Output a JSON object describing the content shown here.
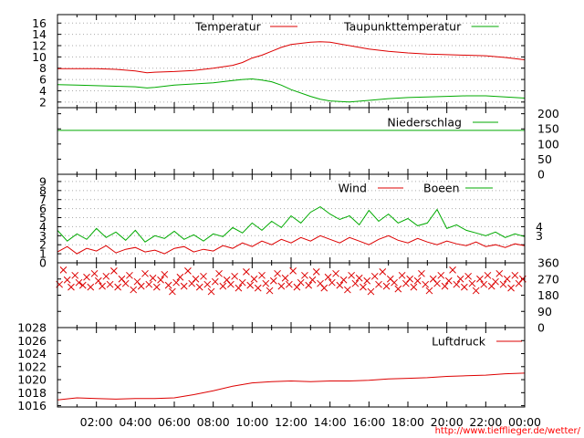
{
  "credit": "http://www.tiefflieger.de/wetter/",
  "colors": {
    "temperature": "#dd0000",
    "dewpoint": "#00aa00",
    "precipitation": "#00aa00",
    "wind": "#dd0000",
    "gusts": "#00aa00",
    "direction": "#dd0000",
    "pressure": "#dd0000",
    "grid": "#aaaaaa",
    "axis": "#000000"
  },
  "x_ticks": [
    "02:00",
    "04:00",
    "06:00",
    "08:00",
    "10:00",
    "12:00",
    "14:00",
    "16:00",
    "18:00",
    "20:00",
    "22:00",
    "00:00"
  ],
  "chart_data": [
    {
      "type": "line",
      "title": "",
      "xlabel": "",
      "ylabel": "",
      "xlim": [
        0,
        24
      ],
      "ylim": [
        1,
        17.5
      ],
      "y_ticks": [
        2,
        4,
        6,
        8,
        10,
        12,
        14,
        16
      ],
      "grid": true,
      "legend_position": "top",
      "series": [
        {
          "name": "Temperatur",
          "x": [
            0,
            1,
            2,
            3,
            4,
            4.6,
            5,
            6,
            7,
            8,
            9,
            9.5,
            10,
            10.5,
            11,
            11.5,
            12,
            13,
            13.5,
            14,
            15,
            16,
            17,
            18,
            19,
            20,
            21,
            22,
            23,
            24
          ],
          "y": [
            7.9,
            7.9,
            7.9,
            7.8,
            7.5,
            7.2,
            7.3,
            7.4,
            7.6,
            8.0,
            8.5,
            9.0,
            9.8,
            10.3,
            11.0,
            11.7,
            12.2,
            12.6,
            12.7,
            12.6,
            12.0,
            11.4,
            11.0,
            10.7,
            10.5,
            10.4,
            10.3,
            10.2,
            9.9,
            9.5
          ]
        },
        {
          "name": "Taupunkttemperatur",
          "x": [
            0,
            1,
            2,
            3,
            4,
            4.6,
            5,
            6,
            7,
            8,
            9,
            9.5,
            10,
            10.5,
            11,
            11.5,
            12,
            13,
            13.5,
            14,
            15,
            16,
            17,
            18,
            19,
            20,
            21,
            22,
            23,
            24
          ],
          "y": [
            5.1,
            5.0,
            4.9,
            4.8,
            4.7,
            4.5,
            4.6,
            5.0,
            5.2,
            5.4,
            5.8,
            6.0,
            6.1,
            5.9,
            5.6,
            5.0,
            4.2,
            3.0,
            2.5,
            2.2,
            2.0,
            2.3,
            2.6,
            2.8,
            2.9,
            3.0,
            3.1,
            3.1,
            2.9,
            2.7
          ]
        }
      ]
    },
    {
      "type": "line",
      "title": "",
      "xlabel": "",
      "ylabel": "",
      "xlim": [
        0,
        24
      ],
      "ylim": [
        0,
        220
      ],
      "y_ticks": [
        0,
        50,
        100,
        150,
        200
      ],
      "grid": false,
      "legend_position": "top-right",
      "series": [
        {
          "name": "Niederschlag",
          "x": [
            0,
            24
          ],
          "y": [
            145,
            145
          ]
        }
      ]
    },
    {
      "type": "line",
      "title": "",
      "xlabel": "",
      "ylabel": "",
      "xlim": [
        0,
        24
      ],
      "ylim": [
        0,
        9.8
      ],
      "y_ticks": [
        0,
        1,
        2,
        3,
        4,
        5,
        6,
        7,
        8,
        9
      ],
      "y2_ticks": [
        3,
        4
      ],
      "grid": true,
      "legend_position": "top",
      "series": [
        {
          "name": "Wind",
          "x": [
            0,
            0.5,
            1,
            1.5,
            2,
            2.5,
            3,
            3.5,
            4,
            4.5,
            5,
            5.5,
            6,
            6.5,
            7,
            7.5,
            8,
            8.5,
            9,
            9.5,
            10,
            10.5,
            11,
            11.5,
            12,
            12.5,
            13,
            13.5,
            14,
            14.5,
            15,
            15.5,
            16,
            16.5,
            17,
            17.5,
            18,
            18.5,
            19,
            19.5,
            20,
            20.5,
            21,
            21.5,
            22,
            22.5,
            23,
            23.5,
            24
          ],
          "y": [
            1.2,
            1.8,
            1.0,
            1.6,
            1.3,
            1.9,
            1.1,
            1.5,
            1.7,
            1.2,
            1.4,
            1.0,
            1.6,
            1.8,
            1.2,
            1.5,
            1.3,
            1.9,
            1.6,
            2.2,
            1.8,
            2.4,
            2.0,
            2.6,
            2.2,
            2.8,
            2.4,
            3.0,
            2.6,
            2.2,
            2.8,
            2.4,
            2.0,
            2.6,
            3.0,
            2.5,
            2.2,
            2.7,
            2.3,
            2.0,
            2.4,
            2.1,
            1.9,
            2.3,
            1.8,
            2.0,
            1.7,
            2.1,
            1.9
          ]
        },
        {
          "name": "Boeen",
          "x": [
            0,
            0.5,
            1,
            1.5,
            2,
            2.5,
            3,
            3.5,
            4,
            4.5,
            5,
            5.5,
            6,
            6.5,
            7,
            7.5,
            8,
            8.5,
            9,
            9.5,
            10,
            10.5,
            11,
            11.5,
            12,
            12.5,
            13,
            13.5,
            14,
            14.5,
            15,
            15.5,
            16,
            16.5,
            17,
            17.5,
            18,
            18.5,
            19,
            19.5,
            20,
            20.5,
            21,
            21.5,
            22,
            22.5,
            23,
            23.5,
            24
          ],
          "y": [
            3.6,
            2.4,
            3.2,
            2.6,
            3.8,
            2.8,
            3.4,
            2.5,
            3.6,
            2.3,
            3.0,
            2.7,
            3.5,
            2.6,
            3.1,
            2.4,
            3.2,
            2.9,
            3.9,
            3.3,
            4.4,
            3.6,
            4.6,
            3.9,
            5.2,
            4.4,
            5.6,
            6.2,
            5.4,
            4.8,
            5.2,
            4.2,
            5.8,
            4.6,
            5.4,
            4.4,
            4.9,
            4.1,
            4.4,
            5.9,
            3.8,
            4.2,
            3.6,
            3.3,
            3.0,
            3.4,
            2.8,
            3.2,
            2.9
          ]
        }
      ]
    },
    {
      "type": "scatter",
      "title": "",
      "xlabel": "",
      "ylabel": "",
      "xlim": [
        0,
        24
      ],
      "ylim": [
        0,
        360
      ],
      "y_ticks": [
        0,
        90,
        180,
        270,
        360
      ],
      "grid": false,
      "series": [
        {
          "name": "",
          "x": [
            0.1,
            0.3,
            0.5,
            0.7,
            0.9,
            1.1,
            1.3,
            1.5,
            1.7,
            1.9,
            2.1,
            2.3,
            2.5,
            2.7,
            2.9,
            3.1,
            3.3,
            3.5,
            3.7,
            3.9,
            4.1,
            4.3,
            4.5,
            4.7,
            4.9,
            5.1,
            5.3,
            5.5,
            5.7,
            5.9,
            6.1,
            6.3,
            6.5,
            6.7,
            6.9,
            7.1,
            7.3,
            7.5,
            7.7,
            7.9,
            8.1,
            8.3,
            8.5,
            8.7,
            8.9,
            9.1,
            9.3,
            9.5,
            9.7,
            9.9,
            10.1,
            10.3,
            10.5,
            10.7,
            10.9,
            11.1,
            11.3,
            11.5,
            11.7,
            11.9,
            12.1,
            12.3,
            12.5,
            12.7,
            12.9,
            13.1,
            13.3,
            13.5,
            13.7,
            13.9,
            14.1,
            14.3,
            14.5,
            14.7,
            14.9,
            15.1,
            15.3,
            15.5,
            15.7,
            15.9,
            16.1,
            16.3,
            16.5,
            16.7,
            16.9,
            17.1,
            17.3,
            17.5,
            17.7,
            17.9,
            18.1,
            18.3,
            18.5,
            18.7,
            18.9,
            19.1,
            19.3,
            19.5,
            19.7,
            19.9,
            20.1,
            20.3,
            20.5,
            20.7,
            20.9,
            21.1,
            21.3,
            21.5,
            21.7,
            21.9,
            22.1,
            22.3,
            22.5,
            22.7,
            22.9,
            23.1,
            23.3,
            23.5,
            23.7,
            23.9
          ],
          "y": [
            240,
            320,
            265,
            225,
            290,
            250,
            235,
            280,
            225,
            300,
            260,
            230,
            285,
            240,
            315,
            225,
            270,
            245,
            290,
            210,
            255,
            230,
            300,
            240,
            275,
            225,
            265,
            295,
            235,
            200,
            250,
            280,
            230,
            315,
            245,
            270,
            225,
            285,
            240,
            200,
            255,
            300,
            230,
            265,
            240,
            285,
            220,
            250,
            310,
            235,
            270,
            220,
            290,
            245,
            205,
            260,
            300,
            230,
            275,
            240,
            315,
            225,
            250,
            290,
            235,
            265,
            310,
            245,
            220,
            280,
            250,
            300,
            235,
            265,
            210,
            290,
            245,
            275,
            225,
            260,
            200,
            285,
            240,
            310,
            230,
            270,
            250,
            215,
            290,
            245,
            270,
            225,
            260,
            300,
            240,
            205,
            270,
            245,
            290,
            230,
            260,
            320,
            240,
            270,
            225,
            285,
            245,
            205,
            270,
            240,
            290,
            230,
            255,
            300,
            240,
            270,
            220,
            290,
            245,
            270
          ]
        }
      ]
    },
    {
      "type": "line",
      "title": "",
      "xlabel": "",
      "ylabel": "",
      "xlim": [
        0,
        24
      ],
      "ylim": [
        1015.8,
        1028
      ],
      "y_ticks": [
        1016,
        1018,
        1020,
        1022,
        1024,
        1026,
        1028
      ],
      "grid": false,
      "legend_position": "top-right",
      "series": [
        {
          "name": "Luftdruck",
          "x": [
            0,
            1,
            2,
            3,
            4,
            5,
            6,
            7,
            8,
            9,
            10,
            11,
            12,
            13,
            14,
            15,
            16,
            17,
            18,
            19,
            20,
            21,
            22,
            23,
            24
          ],
          "y": [
            1016.9,
            1017.2,
            1017.1,
            1017.0,
            1017.1,
            1017.1,
            1017.2,
            1017.7,
            1018.3,
            1019.0,
            1019.5,
            1019.7,
            1019.8,
            1019.7,
            1019.8,
            1019.8,
            1019.9,
            1020.1,
            1020.2,
            1020.3,
            1020.5,
            1020.6,
            1020.7,
            1020.9,
            1021.0
          ]
        }
      ]
    }
  ]
}
